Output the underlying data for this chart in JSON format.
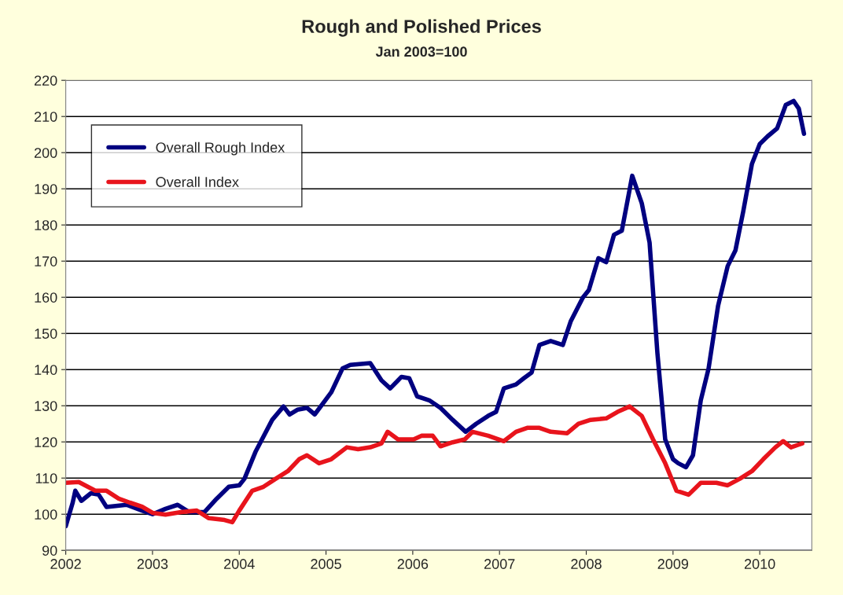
{
  "chart_data": {
    "type": "line",
    "title": "Rough and Polished Prices",
    "subtitle": "Jan 2003=100",
    "xlim": [
      2002,
      2010.6
    ],
    "xticks": [
      2002,
      2003,
      2004,
      2005,
      2006,
      2007,
      2008,
      2009,
      2010
    ],
    "ylim": [
      90,
      220
    ],
    "yticks": [
      90,
      100,
      110,
      120,
      130,
      140,
      150,
      160,
      170,
      180,
      190,
      200,
      210,
      220
    ],
    "grid": "y",
    "legend": "top left",
    "marker": "none",
    "line_style": "solid",
    "series": [
      {
        "name": "Overall Rough Index",
        "color": "#000080",
        "x": [
          2002.0,
          2002.08,
          2002.11,
          2002.18,
          2002.29,
          2002.38,
          2002.47,
          2002.7,
          2002.88,
          2003.0,
          2003.15,
          2003.29,
          2003.42,
          2003.6,
          2003.74,
          2003.88,
          2004.0,
          2004.06,
          2004.19,
          2004.38,
          2004.51,
          2004.58,
          2004.67,
          2004.78,
          2004.87,
          2005.06,
          2005.19,
          2005.28,
          2005.51,
          2005.64,
          2005.74,
          2005.87,
          2005.96,
          2006.05,
          2006.19,
          2006.32,
          2006.46,
          2006.61,
          2006.73,
          2006.87,
          2006.96,
          2007.05,
          2007.19,
          2007.28,
          2007.37,
          2007.46,
          2007.59,
          2007.73,
          2007.82,
          2007.96,
          2008.03,
          2008.14,
          2008.23,
          2008.32,
          2008.41,
          2008.53,
          2008.64,
          2008.73,
          2008.82,
          2008.91,
          2009.0,
          2009.06,
          2009.15,
          2009.23,
          2009.32,
          2009.41,
          2009.52,
          2009.63,
          2009.72,
          2009.81,
          2009.91,
          2010.0,
          2010.09,
          2010.2,
          2010.3,
          2010.39,
          2010.45,
          2010.51
        ],
        "values": [
          96.7,
          103.2,
          106.5,
          103.7,
          105.8,
          105.4,
          102.0,
          102.6,
          101.0,
          100.0,
          101.5,
          102.6,
          100.6,
          100.6,
          104.3,
          107.6,
          108.0,
          109.8,
          117.4,
          126.1,
          129.8,
          127.6,
          128.9,
          129.4,
          127.6,
          133.7,
          140.3,
          141.3,
          141.8,
          137.0,
          134.8,
          138.0,
          137.6,
          132.6,
          131.5,
          129.4,
          126.1,
          122.8,
          125.0,
          127.2,
          128.3,
          134.8,
          135.9,
          137.6,
          139.2,
          146.8,
          147.9,
          146.8,
          153.3,
          159.9,
          162.0,
          170.8,
          169.7,
          177.3,
          178.4,
          193.6,
          186.0,
          175.1,
          144.6,
          120.7,
          115.2,
          114.1,
          113.0,
          116.3,
          131.5,
          140.3,
          157.7,
          168.6,
          173.0,
          183.8,
          196.9,
          202.4,
          204.5,
          206.7,
          213.2,
          214.3,
          212.2,
          205.2
        ]
      },
      {
        "name": "Overall Index",
        "color": "#e8141c",
        "x": [
          2002.0,
          2002.15,
          2002.34,
          2002.47,
          2002.61,
          2002.74,
          2002.88,
          2003.0,
          2003.15,
          2003.33,
          2003.51,
          2003.65,
          2003.83,
          2003.92,
          2004.0,
          2004.15,
          2004.28,
          2004.42,
          2004.56,
          2004.69,
          2004.78,
          2004.92,
          2005.06,
          2005.24,
          2005.37,
          2005.51,
          2005.64,
          2005.71,
          2005.83,
          2006.01,
          2006.1,
          2006.23,
          2006.32,
          2006.46,
          2006.6,
          2006.69,
          2006.87,
          2007.05,
          2007.19,
          2007.32,
          2007.46,
          2007.59,
          2007.78,
          2007.91,
          2008.05,
          2008.23,
          2008.36,
          2008.5,
          2008.64,
          2008.77,
          2008.91,
          2009.04,
          2009.18,
          2009.32,
          2009.5,
          2009.63,
          2009.77,
          2009.91,
          2010.04,
          2010.18,
          2010.27,
          2010.36,
          2010.49
        ],
        "values": [
          108.7,
          108.9,
          106.5,
          106.5,
          104.3,
          103.2,
          102.1,
          100.4,
          99.9,
          100.6,
          101.0,
          98.9,
          98.4,
          97.8,
          101.0,
          106.5,
          107.6,
          109.8,
          111.9,
          115.2,
          116.3,
          114.1,
          115.2,
          118.5,
          118.0,
          118.5,
          119.6,
          122.8,
          120.7,
          120.7,
          121.7,
          121.7,
          118.8,
          119.9,
          120.7,
          122.8,
          121.7,
          120.2,
          122.8,
          123.9,
          123.9,
          122.8,
          122.4,
          125.0,
          126.1,
          126.5,
          128.3,
          129.8,
          127.2,
          120.7,
          114.1,
          106.5,
          105.4,
          108.7,
          108.7,
          108.0,
          109.8,
          111.9,
          115.2,
          118.5,
          120.2,
          118.5,
          119.6
        ]
      }
    ]
  }
}
